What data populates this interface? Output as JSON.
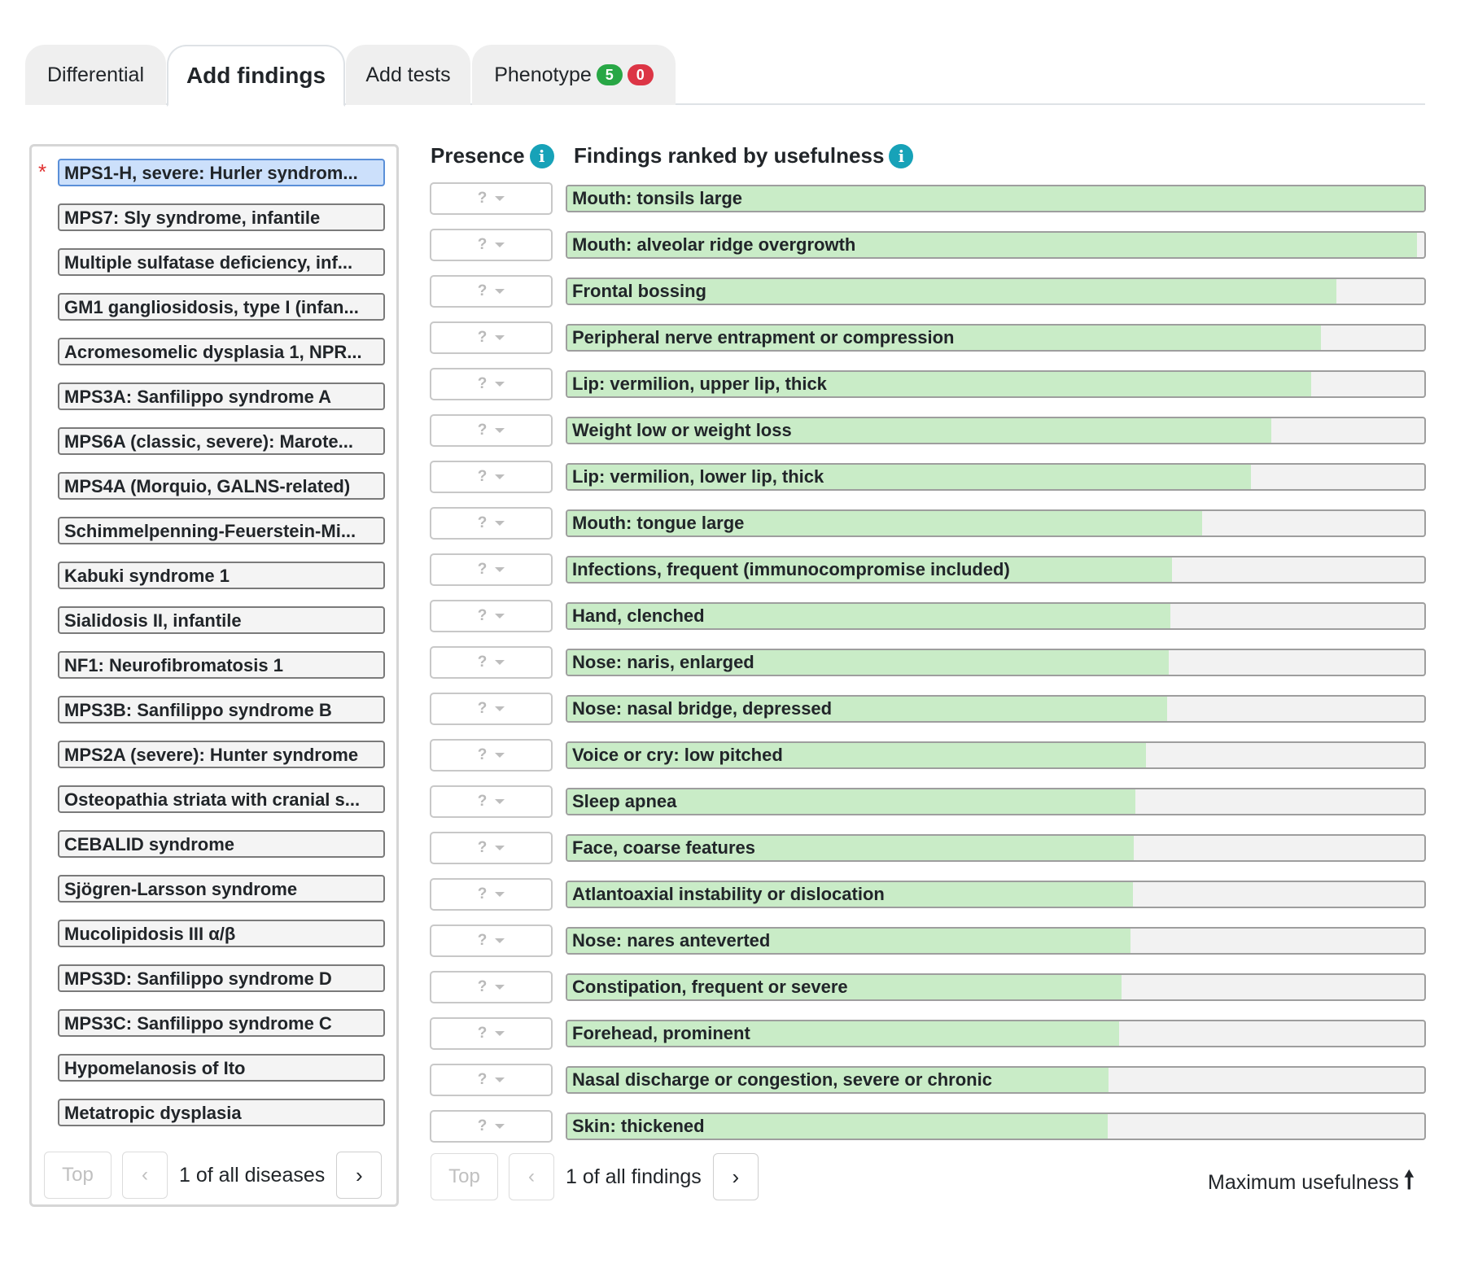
{
  "tabs": {
    "differential": "Differential",
    "add_findings": "Add findings",
    "add_tests": "Add tests",
    "phenotype": "Phenotype",
    "phenotype_present": "5",
    "phenotype_absent": "0"
  },
  "diseases": [
    "MPS1-H, severe: Hurler syndrom...",
    "MPS7: Sly syndrome, infantile",
    "Multiple sulfatase deficiency, inf...",
    "GM1 gangliosidosis, type I (infan...",
    "Acromesomelic dysplasia 1, NPR...",
    "MPS3A: Sanfilippo syndrome A",
    "MPS6A (classic, severe): Marote...",
    "MPS4A (Morquio, GALNS-related)",
    "Schimmelpenning-Feuerstein-Mi...",
    "Kabuki syndrome 1",
    "Sialidosis II, infantile",
    "NF1: Neurofibromatosis 1",
    "MPS3B: Sanfilippo syndrome B",
    "MPS2A (severe): Hunter syndrome",
    "Osteopathia striata with cranial s...",
    "CEBALID syndrome",
    "Sjögren-Larsson syndrome",
    "Mucolipidosis III α/β",
    "MPS3D: Sanfilippo syndrome D",
    "MPS3C: Sanfilippo syndrome C",
    "Hypomelanosis of Ito",
    "Metatropic dysplasia"
  ],
  "selected_disease_marker": "*",
  "disease_pager": {
    "top": "Top",
    "prev": "‹",
    "label": "1 of all diseases",
    "next": "›"
  },
  "findings_header": {
    "presence": "Presence",
    "ranked": "Findings ranked by usefulness",
    "info_glyph": "i"
  },
  "presence_placeholder": "?",
  "findings": [
    {
      "label": "Mouth: tonsils large",
      "usefulness": 1.0
    },
    {
      "label": "Mouth: alveolar ridge overgrowth",
      "usefulness": 0.991
    },
    {
      "label": "Frontal bossing",
      "usefulness": 0.897
    },
    {
      "label": "Peripheral nerve entrapment or compression",
      "usefulness": 0.879
    },
    {
      "label": "Lip: vermilion, upper lip, thick",
      "usefulness": 0.868
    },
    {
      "label": "Weight low or weight loss",
      "usefulness": 0.821
    },
    {
      "label": "Lip: vermilion, lower lip, thick",
      "usefulness": 0.798
    },
    {
      "label": "Mouth: tongue large",
      "usefulness": 0.741
    },
    {
      "label": "Infections, frequent (immunocompromise included)",
      "usefulness": 0.706
    },
    {
      "label": "Hand, clenched",
      "usefulness": 0.704
    },
    {
      "label": "Nose: naris, enlarged",
      "usefulness": 0.702
    },
    {
      "label": "Nose: nasal bridge, depressed",
      "usefulness": 0.7
    },
    {
      "label": "Voice or cry: low pitched",
      "usefulness": 0.675
    },
    {
      "label": "Sleep apnea",
      "usefulness": 0.663
    },
    {
      "label": "Face, coarse features",
      "usefulness": 0.661
    },
    {
      "label": "Atlantoaxial instability or dislocation",
      "usefulness": 0.66
    },
    {
      "label": "Nose: nares anteverted",
      "usefulness": 0.657
    },
    {
      "label": "Constipation, frequent or severe",
      "usefulness": 0.647
    },
    {
      "label": "Forehead, prominent",
      "usefulness": 0.644
    },
    {
      "label": "Nasal discharge or congestion, severe or chronic",
      "usefulness": 0.632
    },
    {
      "label": "Skin: thickened",
      "usefulness": 0.631
    }
  ],
  "findings_pager": {
    "top": "Top",
    "prev": "‹",
    "label": "1 of all findings",
    "next": "›"
  },
  "max_usefulness": "Maximum usefulness",
  "max_usefulness_icon_glyph": "🠕",
  "colors": {
    "bar_fill": "#c9ecc7",
    "selected": "#cce0fb",
    "info": "#17a2b8",
    "badge_green": "#28a745",
    "badge_red": "#dc3545"
  }
}
